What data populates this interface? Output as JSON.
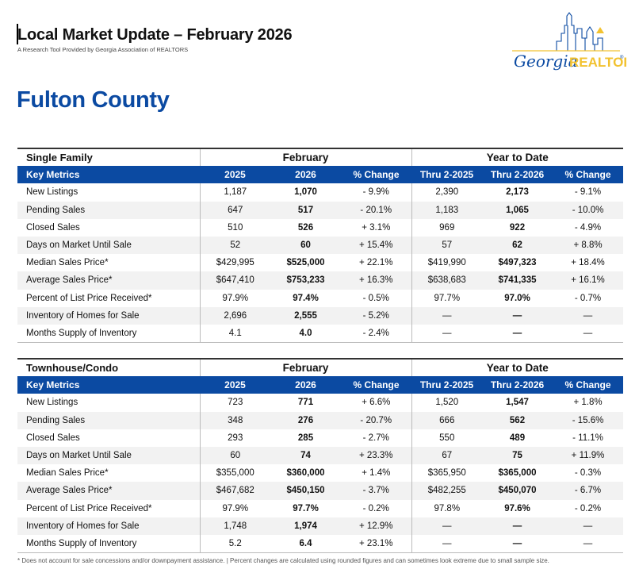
{
  "header": {
    "title": "Local Market Update – February 2026",
    "subtitle": "A Research Tool Provided by Georgia Association of REALTORS",
    "logo_script": "Georgia",
    "logo_brand": "REALTORS",
    "logo_reg": "®",
    "brand_colors": {
      "blue": "#0b4aa2",
      "gold": "#f2c230"
    }
  },
  "county": "Fulton County",
  "columns": {
    "key_metrics": "Key Metrics",
    "group_month": "February",
    "group_ytd": "Year to Date",
    "y1": "2025",
    "y2": "2026",
    "pct": "% Change",
    "ytd1": "Thru 2-2025",
    "ytd2": "Thru 2-2026"
  },
  "sections": [
    {
      "title": "Single Family",
      "rows": [
        {
          "label": "New Listings",
          "v1": "1,187",
          "v2": "1,070",
          "pc": "- 9.9%",
          "y1": "2,390",
          "y2": "2,173",
          "ypc": "- 9.1%"
        },
        {
          "label": "Pending Sales",
          "v1": "647",
          "v2": "517",
          "pc": "- 20.1%",
          "y1": "1,183",
          "y2": "1,065",
          "ypc": "- 10.0%"
        },
        {
          "label": "Closed Sales",
          "v1": "510",
          "v2": "526",
          "pc": "+ 3.1%",
          "y1": "969",
          "y2": "922",
          "ypc": "- 4.9%"
        },
        {
          "label": "Days on Market Until Sale",
          "v1": "52",
          "v2": "60",
          "pc": "+ 15.4%",
          "y1": "57",
          "y2": "62",
          "ypc": "+ 8.8%"
        },
        {
          "label": "Median Sales Price*",
          "v1": "$429,995",
          "v2": "$525,000",
          "pc": "+ 22.1%",
          "y1": "$419,990",
          "y2": "$497,323",
          "ypc": "+ 18.4%"
        },
        {
          "label": "Average Sales Price*",
          "v1": "$647,410",
          "v2": "$753,233",
          "pc": "+ 16.3%",
          "y1": "$638,683",
          "y2": "$741,335",
          "ypc": "+ 16.1%"
        },
        {
          "label": "Percent of List Price Received*",
          "v1": "97.9%",
          "v2": "97.4%",
          "pc": "- 0.5%",
          "y1": "97.7%",
          "y2": "97.0%",
          "ypc": "- 0.7%"
        },
        {
          "label": "Inventory of Homes for Sale",
          "v1": "2,696",
          "v2": "2,555",
          "pc": "- 5.2%",
          "y1": "—",
          "y2": "—",
          "ypc": "—"
        },
        {
          "label": "Months Supply of Inventory",
          "v1": "4.1",
          "v2": "4.0",
          "pc": "- 2.4%",
          "y1": "—",
          "y2": "—",
          "ypc": "—"
        }
      ]
    },
    {
      "title": "Townhouse/Condo",
      "rows": [
        {
          "label": "New Listings",
          "v1": "723",
          "v2": "771",
          "pc": "+ 6.6%",
          "y1": "1,520",
          "y2": "1,547",
          "ypc": "+ 1.8%"
        },
        {
          "label": "Pending Sales",
          "v1": "348",
          "v2": "276",
          "pc": "- 20.7%",
          "y1": "666",
          "y2": "562",
          "ypc": "- 15.6%"
        },
        {
          "label": "Closed Sales",
          "v1": "293",
          "v2": "285",
          "pc": "- 2.7%",
          "y1": "550",
          "y2": "489",
          "ypc": "- 11.1%"
        },
        {
          "label": "Days on Market Until Sale",
          "v1": "60",
          "v2": "74",
          "pc": "+ 23.3%",
          "y1": "67",
          "y2": "75",
          "ypc": "+ 11.9%"
        },
        {
          "label": "Median Sales Price*",
          "v1": "$355,000",
          "v2": "$360,000",
          "pc": "+ 1.4%",
          "y1": "$365,950",
          "y2": "$365,000",
          "ypc": "- 0.3%"
        },
        {
          "label": "Average Sales Price*",
          "v1": "$467,682",
          "v2": "$450,150",
          "pc": "- 3.7%",
          "y1": "$482,255",
          "y2": "$450,070",
          "ypc": "- 6.7%"
        },
        {
          "label": "Percent of List Price Received*",
          "v1": "97.9%",
          "v2": "97.7%",
          "pc": "- 0.2%",
          "y1": "97.8%",
          "y2": "97.6%",
          "ypc": "- 0.2%"
        },
        {
          "label": "Inventory of Homes for Sale",
          "v1": "1,748",
          "v2": "1,974",
          "pc": "+ 12.9%",
          "y1": "—",
          "y2": "—",
          "ypc": "—"
        },
        {
          "label": "Months Supply of Inventory",
          "v1": "5.2",
          "v2": "6.4",
          "pc": "+ 23.1%",
          "y1": "—",
          "y2": "—",
          "ypc": "—"
        }
      ]
    }
  ],
  "footnote": "* Does not account for sale concessions and/or downpayment assistance. | Percent changes are calculated using rounded figures and can sometimes look extreme due to small sample size."
}
